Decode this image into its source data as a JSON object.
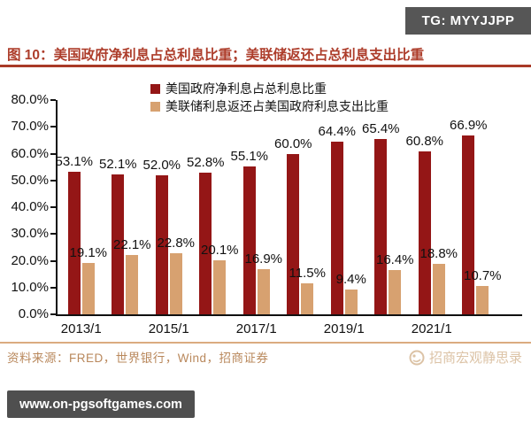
{
  "badges": {
    "telegram": "TG: MYYJJPP",
    "website": "www.on-pgsoftgames.com"
  },
  "header": {
    "figure_label": "图 10：",
    "title": "美国政府净利息占总利息比重；美联储返还占总利息支出比重"
  },
  "chart_data": {
    "type": "bar",
    "n_groups": 10,
    "x_tick_labels": [
      "2013/1",
      "2015/1",
      "2017/1",
      "2019/1",
      "2021/1"
    ],
    "x_tick_note": "tick label under every other bar group",
    "series": [
      {
        "name": "美国政府净利息占总利息比重",
        "color": "#941616",
        "values": [
          53.1,
          52.1,
          52.0,
          52.8,
          55.1,
          60.0,
          64.4,
          65.4,
          60.8,
          66.9
        ]
      },
      {
        "name": "美联储利息返还占美国政府利息支出比重",
        "color": "#D7A170",
        "values": [
          19.1,
          22.1,
          22.8,
          20.1,
          16.9,
          11.5,
          9.4,
          16.4,
          18.8,
          10.7
        ]
      }
    ],
    "y_ticks": [
      "0.0%",
      "10.0%",
      "20.0%",
      "30.0%",
      "40.0%",
      "50.0%",
      "60.0%",
      "70.0%",
      "80.0%"
    ],
    "ylim": [
      0,
      80
    ],
    "grid": false,
    "legend_position": "top-center",
    "value_labels": true
  },
  "source": {
    "label": "资料来源：",
    "text": "FRED，世界银行，Wind，招商证券"
  },
  "watermark": {
    "text": "招商宏观静思录"
  }
}
